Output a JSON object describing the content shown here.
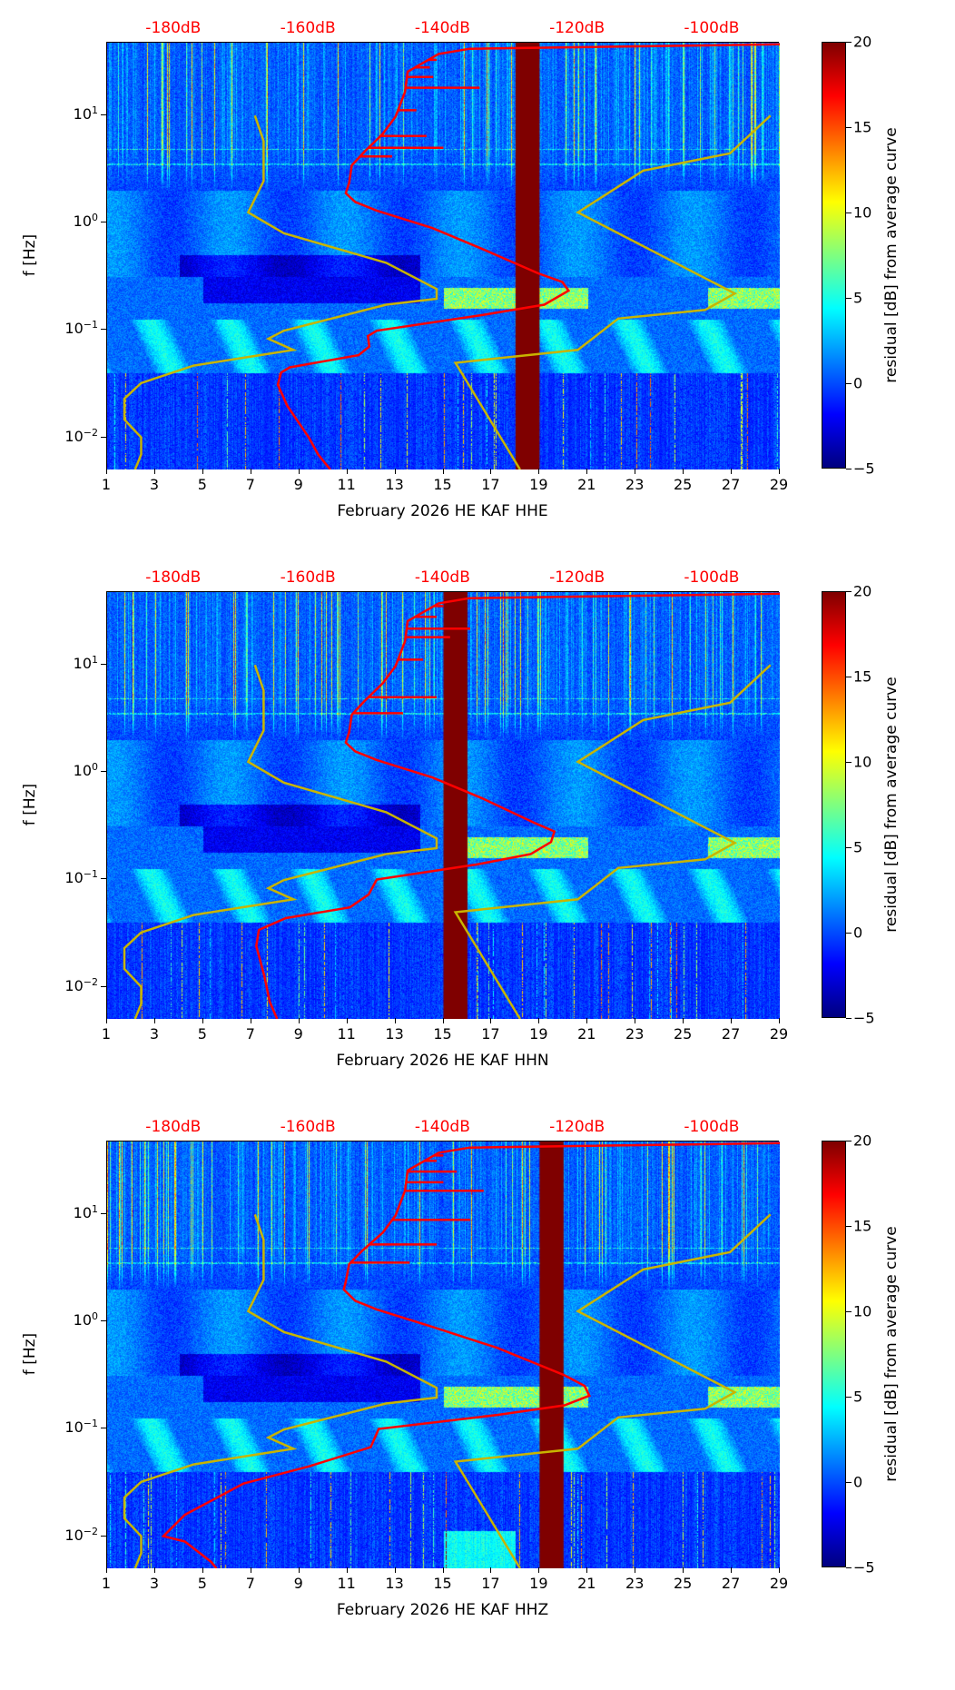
{
  "figure": {
    "ylabel": "f [Hz]",
    "colorbar": {
      "label": "residual [dB] from average curve",
      "ticks": [
        "−5",
        "0",
        "5",
        "10",
        "15",
        "20"
      ],
      "tick_values": [
        -5,
        0,
        5,
        10,
        15,
        20
      ],
      "range": [
        -5,
        20
      ],
      "colormap": "jet"
    }
  },
  "axes_common": {
    "xlim_days": [
      1,
      29
    ],
    "xticks": [
      "1",
      "3",
      "5",
      "7",
      "9",
      "11",
      "13",
      "15",
      "17",
      "19",
      "21",
      "23",
      "25",
      "27",
      "29"
    ],
    "ylim_log10_hz": [
      -2.3,
      1.68
    ],
    "yticks": [
      {
        "base": "10",
        "exp": "−2",
        "log": -2
      },
      {
        "base": "10",
        "exp": "−1",
        "log": -1
      },
      {
        "base": "10",
        "exp": "0",
        "log": 0
      },
      {
        "base": "10",
        "exp": "1",
        "log": 1
      }
    ],
    "top_ticks": [
      {
        "label": "-180dB",
        "db": -180
      },
      {
        "label": "-160dB",
        "db": -160
      },
      {
        "label": "-140dB",
        "db": -140
      },
      {
        "label": "-120dB",
        "db": -120
      },
      {
        "label": "-100dB",
        "db": -100
      }
    ],
    "db_axis_day_at_minus180": 3.79,
    "db_axis_day_at_minus100": 26.2
  },
  "colors": {
    "mean_curve": "#ff0000",
    "model_curve": "#c8b400",
    "gap": "#7f0000",
    "top_tick_label": "#ff0000"
  },
  "reference_curves": {
    "low_noise_model": [
      [
        -168.0,
        1.0
      ],
      [
        -166.7,
        0.763
      ],
      [
        -166.7,
        0.39
      ],
      [
        -169.0,
        0.097
      ],
      [
        -163.7,
        -0.097
      ],
      [
        -148.5,
        -0.373
      ],
      [
        -141.0,
        -0.617
      ],
      [
        -141.0,
        -0.708
      ],
      [
        -148.5,
        -0.763
      ],
      [
        -163.7,
        -1.006
      ],
      [
        -166.0,
        -1.081
      ],
      [
        -162.3,
        -1.185
      ],
      [
        -177.1,
        -1.331
      ],
      [
        -184.9,
        -1.494
      ],
      [
        -187.4,
        -1.64
      ],
      [
        -187.4,
        -1.834
      ],
      [
        -184.9,
        -2.0
      ],
      [
        -184.9,
        -2.16
      ],
      [
        -185.8,
        -2.3
      ]
    ],
    "high_noise_model": [
      [
        -91.4,
        1.0
      ],
      [
        -97.4,
        0.649
      ],
      [
        -110.3,
        0.487
      ],
      [
        -120.0,
        0.097
      ],
      [
        -96.7,
        -0.659
      ],
      [
        -101.1,
        -0.812
      ],
      [
        -114.0,
        -0.893
      ],
      [
        -120.0,
        -1.185
      ],
      [
        -138.2,
        -1.305
      ],
      [
        -128.6,
        -2.3
      ]
    ]
  },
  "chart_data": [
    {
      "type": "heatmap",
      "xlabel": "February 2026 HE KAF  HHE",
      "gap_days": [
        18,
        19
      ],
      "mean_curve_db_log10hz": [
        [
          -90,
          1.665
        ],
        [
          -136.1,
          1.623
        ],
        [
          -140.7,
          1.575
        ],
        [
          -142.5,
          1.51
        ],
        [
          -145.3,
          1.41
        ],
        [
          -145.7,
          1.22
        ],
        [
          -147.1,
          0.99
        ],
        [
          -149.0,
          0.83
        ],
        [
          -151.7,
          0.665
        ],
        [
          -153.6,
          0.536
        ],
        [
          -154.0,
          0.373
        ],
        [
          -154.5,
          0.276
        ],
        [
          -153.1,
          0.195
        ],
        [
          -149.9,
          0.114
        ],
        [
          -141.6,
          -0.049
        ],
        [
          -134.2,
          -0.244
        ],
        [
          -125.9,
          -0.471
        ],
        [
          -122.3,
          -0.552
        ],
        [
          -121.4,
          -0.633
        ],
        [
          -125.0,
          -0.763
        ],
        [
          -134.2,
          -0.86
        ],
        [
          -149.9,
          -1.006
        ],
        [
          -151.2,
          -1.055
        ],
        [
          -151.0,
          -1.153
        ],
        [
          -152.6,
          -1.234
        ],
        [
          -162.8,
          -1.347
        ],
        [
          -164.1,
          -1.396
        ],
        [
          -164.6,
          -1.51
        ],
        [
          -163.2,
          -1.705
        ],
        [
          -160.0,
          -2.0
        ],
        [
          -158.6,
          -2.16
        ],
        [
          -156.8,
          -2.3
        ]
      ],
      "spikes_log10hz_db": [
        [
          1.52,
          -141
        ],
        [
          1.45,
          -142
        ],
        [
          1.36,
          -141.5
        ],
        [
          1.26,
          -134.6
        ],
        [
          1.05,
          -144
        ],
        [
          0.81,
          -142.5
        ],
        [
          0.7,
          -140
        ],
        [
          0.62,
          -147.6
        ]
      ]
    },
    {
      "type": "heatmap",
      "xlabel": "February 2026 HE KAF  HHN",
      "gap_days": [
        15,
        16
      ],
      "mean_curve_db_log10hz": [
        [
          -90,
          1.665
        ],
        [
          -136.1,
          1.623
        ],
        [
          -140.7,
          1.575
        ],
        [
          -142.5,
          1.51
        ],
        [
          -145.3,
          1.41
        ],
        [
          -145.7,
          1.22
        ],
        [
          -147.1,
          0.99
        ],
        [
          -149.0,
          0.83
        ],
        [
          -151.7,
          0.665
        ],
        [
          -153.6,
          0.536
        ],
        [
          -154.0,
          0.373
        ],
        [
          -154.5,
          0.276
        ],
        [
          -153.1,
          0.195
        ],
        [
          -149.9,
          0.114
        ],
        [
          -141.6,
          -0.049
        ],
        [
          -134.2,
          -0.244
        ],
        [
          -126.5,
          -0.471
        ],
        [
          -123.5,
          -0.552
        ],
        [
          -124.0,
          -0.65
        ],
        [
          -127.0,
          -0.763
        ],
        [
          -135.0,
          -0.86
        ],
        [
          -149.9,
          -1.0
        ],
        [
          -151.1,
          -1.14
        ],
        [
          -153.9,
          -1.26
        ],
        [
          -163.4,
          -1.36
        ],
        [
          -167.4,
          -1.47
        ],
        [
          -167.8,
          -1.62
        ],
        [
          -166.6,
          -1.9
        ],
        [
          -165.8,
          -2.14
        ],
        [
          -164.7,
          -2.3
        ]
      ],
      "spikes_log10hz_db": [
        [
          1.55,
          -140
        ],
        [
          1.45,
          -141
        ],
        [
          1.34,
          -136
        ],
        [
          1.26,
          -139
        ],
        [
          1.05,
          -143
        ],
        [
          0.7,
          -141
        ],
        [
          0.55,
          -146
        ]
      ]
    },
    {
      "type": "heatmap",
      "xlabel": "February 2026 HE KAF  HHZ",
      "gap_days": [
        19,
        20
      ],
      "mean_curve_db_log10hz": [
        [
          -90,
          1.665
        ],
        [
          -136.1,
          1.623
        ],
        [
          -140.7,
          1.575
        ],
        [
          -142.5,
          1.51
        ],
        [
          -145.3,
          1.41
        ],
        [
          -145.7,
          1.22
        ],
        [
          -147.1,
          0.99
        ],
        [
          -149.0,
          0.83
        ],
        [
          -152.0,
          0.665
        ],
        [
          -154.0,
          0.536
        ],
        [
          -154.5,
          0.373
        ],
        [
          -154.8,
          0.3
        ],
        [
          -153.1,
          0.195
        ],
        [
          -149.9,
          0.114
        ],
        [
          -141.6,
          -0.049
        ],
        [
          -132.0,
          -0.244
        ],
        [
          -122.0,
          -0.5
        ],
        [
          -119.0,
          -0.6
        ],
        [
          -118.3,
          -0.69
        ],
        [
          -122.0,
          -0.78
        ],
        [
          -132.0,
          -0.87
        ],
        [
          -149.6,
          -1.0
        ],
        [
          -150.8,
          -1.17
        ],
        [
          -160.0,
          -1.35
        ],
        [
          -169.7,
          -1.51
        ],
        [
          -178.4,
          -1.8
        ],
        [
          -181.6,
          -2.0
        ],
        [
          -178.4,
          -2.05
        ],
        [
          -174.5,
          -2.24
        ],
        [
          -173.7,
          -2.3
        ]
      ],
      "spikes_log10hz_db": [
        [
          1.55,
          -140
        ],
        [
          1.5,
          -141
        ],
        [
          1.4,
          -138
        ],
        [
          1.3,
          -140
        ],
        [
          1.22,
          -134
        ],
        [
          0.95,
          -136
        ],
        [
          0.72,
          -141
        ],
        [
          0.55,
          -145
        ]
      ]
    }
  ]
}
